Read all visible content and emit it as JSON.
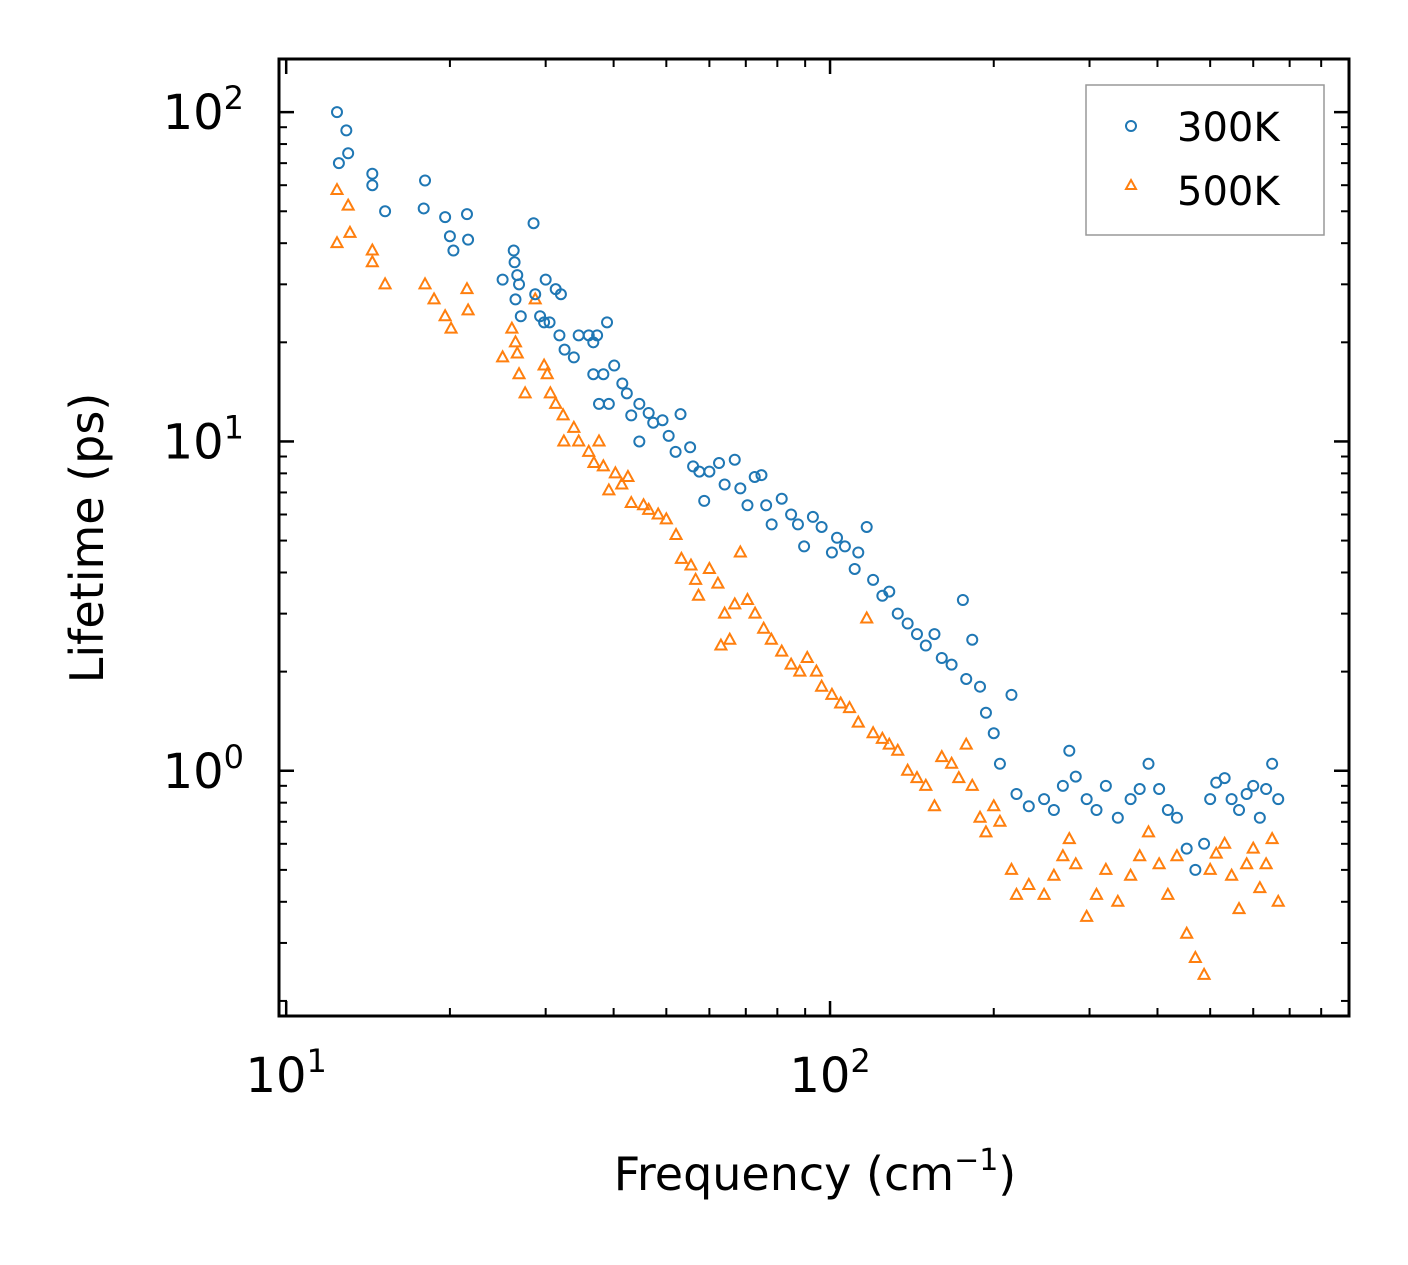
{
  "chart_data": {
    "type": "scatter",
    "title": "",
    "xlabel": "Frequency (cm",
    "xlabel_sup": "−1",
    "xlabel_end": ")",
    "ylabel": "Lifetime (ps)",
    "xscale": "log",
    "yscale": "log",
    "xlim": [
      9.7,
      900
    ],
    "ylim": [
      0.18,
      145
    ],
    "x_ticks": [
      {
        "base": "10",
        "exp": "1",
        "value": 10
      },
      {
        "base": "10",
        "exp": "2",
        "value": 100
      }
    ],
    "y_ticks": [
      {
        "base": "10",
        "exp": "0",
        "value": 1
      },
      {
        "base": "10",
        "exp": "1",
        "value": 10
      },
      {
        "base": "10",
        "exp": "2",
        "value": 100
      }
    ],
    "legend_position": "top-right",
    "series": [
      {
        "name": "300K",
        "marker": "circle",
        "color": "#1f77b4",
        "points": [
          [
            12.4,
            100
          ],
          [
            12.9,
            88
          ],
          [
            13.0,
            75
          ],
          [
            12.5,
            70
          ],
          [
            14.4,
            65
          ],
          [
            14.4,
            60
          ],
          [
            15.2,
            50
          ],
          [
            18.0,
            62
          ],
          [
            17.9,
            51
          ],
          [
            19.6,
            48
          ],
          [
            20.0,
            42
          ],
          [
            20.3,
            38
          ],
          [
            21.5,
            49
          ],
          [
            21.6,
            41
          ],
          [
            25.0,
            31
          ],
          [
            26.2,
            38
          ],
          [
            26.3,
            35
          ],
          [
            26.6,
            32
          ],
          [
            26.8,
            30
          ],
          [
            26.4,
            27
          ],
          [
            27.0,
            24
          ],
          [
            28.5,
            46
          ],
          [
            28.7,
            28
          ],
          [
            29.3,
            24
          ],
          [
            29.8,
            23
          ],
          [
            30.0,
            31
          ],
          [
            30.5,
            23
          ],
          [
            31.3,
            29
          ],
          [
            32.0,
            28
          ],
          [
            31.8,
            21
          ],
          [
            32.5,
            19
          ],
          [
            33.8,
            18
          ],
          [
            34.5,
            21
          ],
          [
            36.0,
            21
          ],
          [
            36.7,
            20
          ],
          [
            37.3,
            21
          ],
          [
            38.9,
            23
          ],
          [
            36.7,
            16
          ],
          [
            37.6,
            13
          ],
          [
            38.3,
            16
          ],
          [
            39.2,
            13
          ],
          [
            40.1,
            17
          ],
          [
            41.5,
            15
          ],
          [
            42.3,
            14
          ],
          [
            43.1,
            12
          ],
          [
            44.6,
            13
          ],
          [
            44.6,
            10
          ],
          [
            46.4,
            12.2
          ],
          [
            47.3,
            11.4
          ],
          [
            49.2,
            11.6
          ],
          [
            50.5,
            10.4
          ],
          [
            52.0,
            9.3
          ],
          [
            53.1,
            12.1
          ],
          [
            55.3,
            9.6
          ],
          [
            56.0,
            8.4
          ],
          [
            57.5,
            8.1
          ],
          [
            58.7,
            6.6
          ],
          [
            60.0,
            8.1
          ],
          [
            62.5,
            8.6
          ],
          [
            64.0,
            7.4
          ],
          [
            66.8,
            8.8
          ],
          [
            68.4,
            7.2
          ],
          [
            70.5,
            6.4
          ],
          [
            72.7,
            7.8
          ],
          [
            74.8,
            7.9
          ],
          [
            76.3,
            6.4
          ],
          [
            78.1,
            5.6
          ],
          [
            81.5,
            6.7
          ],
          [
            84.8,
            6.0
          ],
          [
            87.3,
            5.6
          ],
          [
            89.6,
            4.8
          ],
          [
            93.0,
            5.9
          ],
          [
            96.5,
            5.5
          ],
          [
            100.8,
            4.6
          ],
          [
            103.0,
            5.1
          ],
          [
            106.5,
            4.8
          ],
          [
            111.0,
            4.1
          ],
          [
            112.7,
            4.6
          ],
          [
            116.8,
            5.5
          ],
          [
            120.0,
            3.8
          ],
          [
            124.8,
            3.4
          ],
          [
            128.5,
            3.5
          ],
          [
            133.2,
            3.0
          ],
          [
            138.9,
            2.8
          ],
          [
            144.5,
            2.6
          ],
          [
            150.0,
            2.4
          ],
          [
            155.6,
            2.6
          ],
          [
            160.5,
            2.2
          ],
          [
            167.3,
            2.1
          ],
          [
            175.5,
            3.3
          ],
          [
            178.0,
            1.9
          ],
          [
            182.6,
            2.5
          ],
          [
            188.7,
            1.8
          ],
          [
            193.5,
            1.5
          ],
          [
            200.0,
            1.3
          ],
          [
            205.3,
            1.05
          ],
          [
            215.6,
            1.7
          ],
          [
            220.2,
            0.85
          ],
          [
            232.0,
            0.78
          ],
          [
            247.5,
            0.82
          ],
          [
            258.0,
            0.76
          ],
          [
            268.0,
            0.9
          ],
          [
            275.4,
            1.15
          ],
          [
            283.0,
            0.96
          ],
          [
            296.4,
            0.82
          ],
          [
            309.0,
            0.76
          ],
          [
            321.5,
            0.9
          ],
          [
            338.2,
            0.72
          ],
          [
            357.0,
            0.82
          ],
          [
            371.0,
            0.88
          ],
          [
            385.1,
            1.05
          ],
          [
            402.8,
            0.88
          ],
          [
            418.0,
            0.76
          ],
          [
            434.4,
            0.72
          ],
          [
            452.7,
            0.58
          ],
          [
            469.6,
            0.5
          ],
          [
            487.3,
            0.6
          ],
          [
            500.0,
            0.82
          ],
          [
            513.0,
            0.92
          ],
          [
            531.6,
            0.95
          ],
          [
            547.5,
            0.82
          ],
          [
            565.0,
            0.76
          ],
          [
            583.5,
            0.85
          ],
          [
            600.0,
            0.9
          ],
          [
            617.0,
            0.72
          ],
          [
            633.6,
            0.88
          ],
          [
            650.0,
            1.05
          ],
          [
            667.0,
            0.82
          ]
        ]
      },
      {
        "name": "500K",
        "marker": "triangle",
        "color": "#ff7f0e",
        "points": [
          [
            12.4,
            58
          ],
          [
            12.4,
            40
          ],
          [
            13.0,
            52
          ],
          [
            13.1,
            43
          ],
          [
            14.4,
            38
          ],
          [
            14.4,
            35
          ],
          [
            15.2,
            30
          ],
          [
            18.0,
            30
          ],
          [
            18.7,
            27
          ],
          [
            19.6,
            24
          ],
          [
            20.1,
            22
          ],
          [
            21.5,
            29
          ],
          [
            21.6,
            25
          ],
          [
            25.0,
            18
          ],
          [
            26.0,
            22
          ],
          [
            26.4,
            20
          ],
          [
            26.6,
            18.5
          ],
          [
            26.8,
            16
          ],
          [
            27.5,
            14
          ],
          [
            28.7,
            27
          ],
          [
            29.8,
            17
          ],
          [
            30.2,
            16
          ],
          [
            30.6,
            14
          ],
          [
            31.3,
            13
          ],
          [
            32.3,
            12
          ],
          [
            32.4,
            10
          ],
          [
            33.8,
            11
          ],
          [
            34.5,
            10
          ],
          [
            36.0,
            9.3
          ],
          [
            36.8,
            8.6
          ],
          [
            37.6,
            10
          ],
          [
            38.3,
            8.4
          ],
          [
            39.2,
            7.1
          ],
          [
            40.3,
            8.0
          ],
          [
            41.4,
            7.4
          ],
          [
            42.5,
            7.8
          ],
          [
            43.1,
            6.5
          ],
          [
            45.4,
            6.4
          ],
          [
            46.4,
            6.2
          ],
          [
            48.3,
            6.0
          ],
          [
            50.0,
            5.8
          ],
          [
            52.1,
            5.2
          ],
          [
            53.3,
            4.4
          ],
          [
            55.5,
            4.2
          ],
          [
            56.6,
            3.8
          ],
          [
            57.3,
            3.4
          ],
          [
            60.0,
            4.1
          ],
          [
            62.2,
            3.7
          ],
          [
            63.0,
            2.4
          ],
          [
            64.0,
            3.0
          ],
          [
            65.4,
            2.5
          ],
          [
            66.8,
            3.2
          ],
          [
            68.4,
            4.6
          ],
          [
            70.5,
            3.3
          ],
          [
            72.8,
            3.0
          ],
          [
            75.5,
            2.7
          ],
          [
            78.0,
            2.5
          ],
          [
            81.5,
            2.3
          ],
          [
            84.8,
            2.1
          ],
          [
            88.0,
            2.0
          ],
          [
            90.8,
            2.2
          ],
          [
            94.4,
            2.0
          ],
          [
            96.5,
            1.8
          ],
          [
            100.8,
            1.7
          ],
          [
            104.6,
            1.6
          ],
          [
            108.6,
            1.55
          ],
          [
            112.7,
            1.4
          ],
          [
            116.8,
            2.9
          ],
          [
            120.0,
            1.3
          ],
          [
            124.8,
            1.25
          ],
          [
            128.5,
            1.2
          ],
          [
            133.2,
            1.15
          ],
          [
            138.9,
            1.0
          ],
          [
            144.5,
            0.95
          ],
          [
            150.0,
            0.9
          ],
          [
            155.6,
            0.78
          ],
          [
            160.5,
            1.1
          ],
          [
            167.3,
            1.05
          ],
          [
            172.5,
            0.95
          ],
          [
            178.0,
            1.2
          ],
          [
            182.6,
            0.9
          ],
          [
            188.7,
            0.72
          ],
          [
            193.5,
            0.65
          ],
          [
            200.0,
            0.78
          ],
          [
            205.3,
            0.7
          ],
          [
            215.6,
            0.5
          ],
          [
            220.2,
            0.42
          ],
          [
            232.0,
            0.45
          ],
          [
            247.5,
            0.42
          ],
          [
            258.0,
            0.48
          ],
          [
            268.0,
            0.55
          ],
          [
            275.4,
            0.62
          ],
          [
            283.0,
            0.52
          ],
          [
            296.4,
            0.36
          ],
          [
            309.0,
            0.42
          ],
          [
            321.5,
            0.5
          ],
          [
            338.2,
            0.4
          ],
          [
            357.0,
            0.48
          ],
          [
            371.0,
            0.55
          ],
          [
            385.1,
            0.65
          ],
          [
            402.8,
            0.52
          ],
          [
            418.0,
            0.42
          ],
          [
            434.4,
            0.55
          ],
          [
            452.7,
            0.32
          ],
          [
            469.6,
            0.27
          ],
          [
            487.3,
            0.24
          ],
          [
            500.0,
            0.5
          ],
          [
            513.0,
            0.56
          ],
          [
            531.6,
            0.6
          ],
          [
            547.5,
            0.48
          ],
          [
            565.0,
            0.38
          ],
          [
            583.5,
            0.52
          ],
          [
            600.0,
            0.58
          ],
          [
            617.0,
            0.44
          ],
          [
            633.6,
            0.52
          ],
          [
            650.0,
            0.62
          ],
          [
            667.0,
            0.4
          ]
        ]
      }
    ]
  }
}
